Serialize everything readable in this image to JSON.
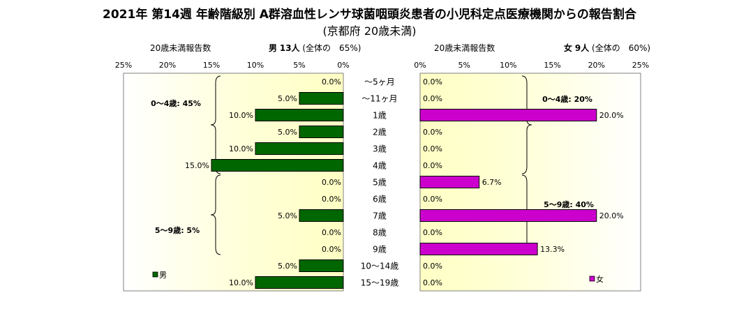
{
  "title": "2021年 第14週 年齢階級別 A群溶血性レンサ球菌咽頭炎患者の小児科定点医療機関からの報告割合",
  "subtitle": "(京都府 20歳未満)",
  "male_header": {
    "count_label": "20歳未満報告数",
    "sex": "男",
    "count": "13人",
    "share_text": "(全体の　65%)"
  },
  "female_header": {
    "count_label": "20歳未満報告数",
    "sex": "女",
    "count": "9人",
    "share_text": "(全体の　60%)"
  },
  "chart_data": {
    "type": "bar",
    "orientation": "horizontal",
    "categories": [
      "～5ヶ月",
      "～11ヶ月",
      "1歳",
      "2歳",
      "3歳",
      "4歳",
      "5歳",
      "6歳",
      "7歳",
      "8歳",
      "9歳",
      "10～14歳",
      "15～19歳"
    ],
    "xlim": [
      0,
      25
    ],
    "x_ticks": [
      "0%",
      "5%",
      "10%",
      "15%",
      "20%",
      "25%"
    ],
    "series": [
      {
        "name": "男",
        "color": "#006600",
        "values": [
          0.0,
          5.0,
          10.0,
          5.0,
          10.0,
          15.0,
          0.0,
          0.0,
          5.0,
          0.0,
          0.0,
          5.0,
          10.0
        ],
        "labels": [
          "0.0%",
          "5.0%",
          "10.0%",
          "5.0%",
          "10.0%",
          "15.0%",
          "0.0%",
          "0.0%",
          "5.0%",
          "0.0%",
          "0.0%",
          "5.0%",
          "10.0%"
        ]
      },
      {
        "name": "女",
        "color": "#cc00cc",
        "values": [
          0.0,
          0.0,
          20.0,
          0.0,
          0.0,
          0.0,
          6.7,
          0.0,
          20.0,
          0.0,
          13.3,
          0.0,
          0.0
        ],
        "labels": [
          "0.0%",
          "0.0%",
          "20.0%",
          "0.0%",
          "0.0%",
          "0.0%",
          "6.7%",
          "0.0%",
          "20.0%",
          "0.0%",
          "13.3%",
          "0.0%",
          "0.0%"
        ]
      }
    ],
    "annotations": {
      "male_0_4": "0～4歳: 45%",
      "male_5_9": "5～9歳: 5%",
      "female_0_4": "0～4歳: 20%",
      "female_5_9": "5～9歳: 40%"
    },
    "plot_background": "#ffffd0"
  }
}
